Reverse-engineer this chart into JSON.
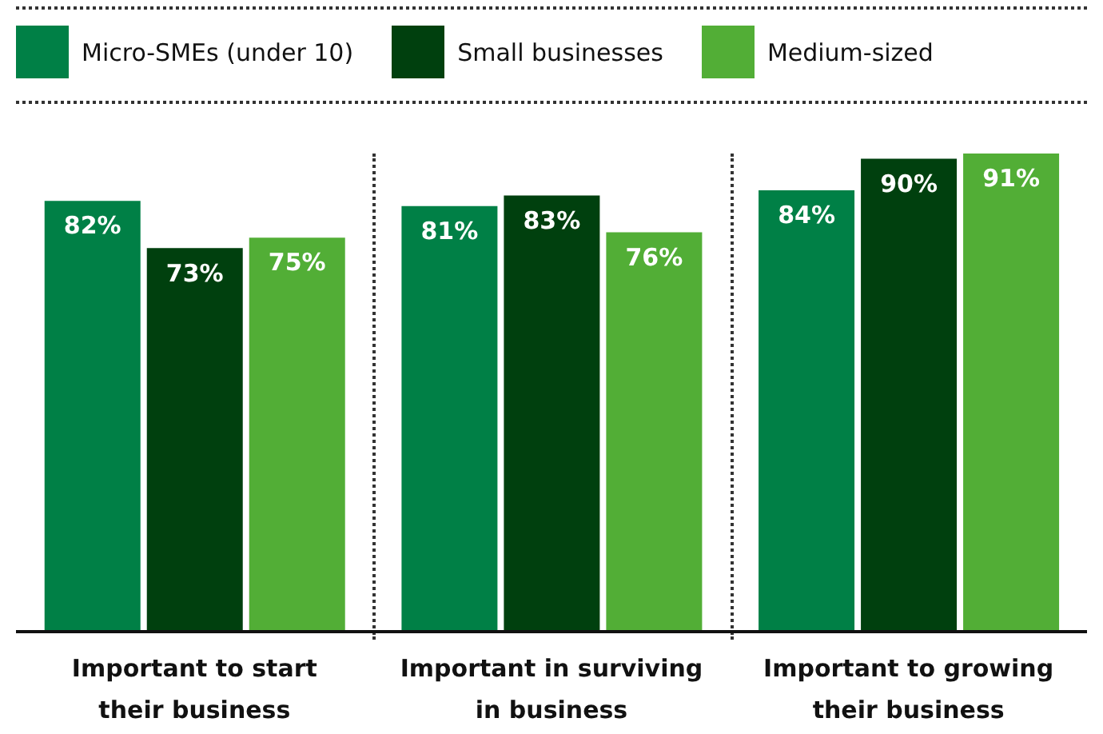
{
  "chart_data": {
    "type": "bar",
    "categories": [
      "Important to start their business",
      "Important in surviving in business",
      "Important to growing their business"
    ],
    "series": [
      {
        "name": "Micro-SMEs (under 10)",
        "color": "#008046",
        "values": [
          82,
          81,
          84
        ],
        "value_labels": [
          "82%",
          "81%",
          "84%"
        ]
      },
      {
        "name": "Small businesses",
        "color": "#00400e",
        "values": [
          73,
          83,
          90
        ],
        "value_labels": [
          "73%",
          "83%",
          "90%"
        ]
      },
      {
        "name": "Medium-sized",
        "color": "#52ae36",
        "values": [
          75,
          76,
          91
        ],
        "value_labels": [
          "75%",
          "76%",
          "91%"
        ]
      }
    ],
    "legend": "top",
    "tick_labels": "x"
  }
}
